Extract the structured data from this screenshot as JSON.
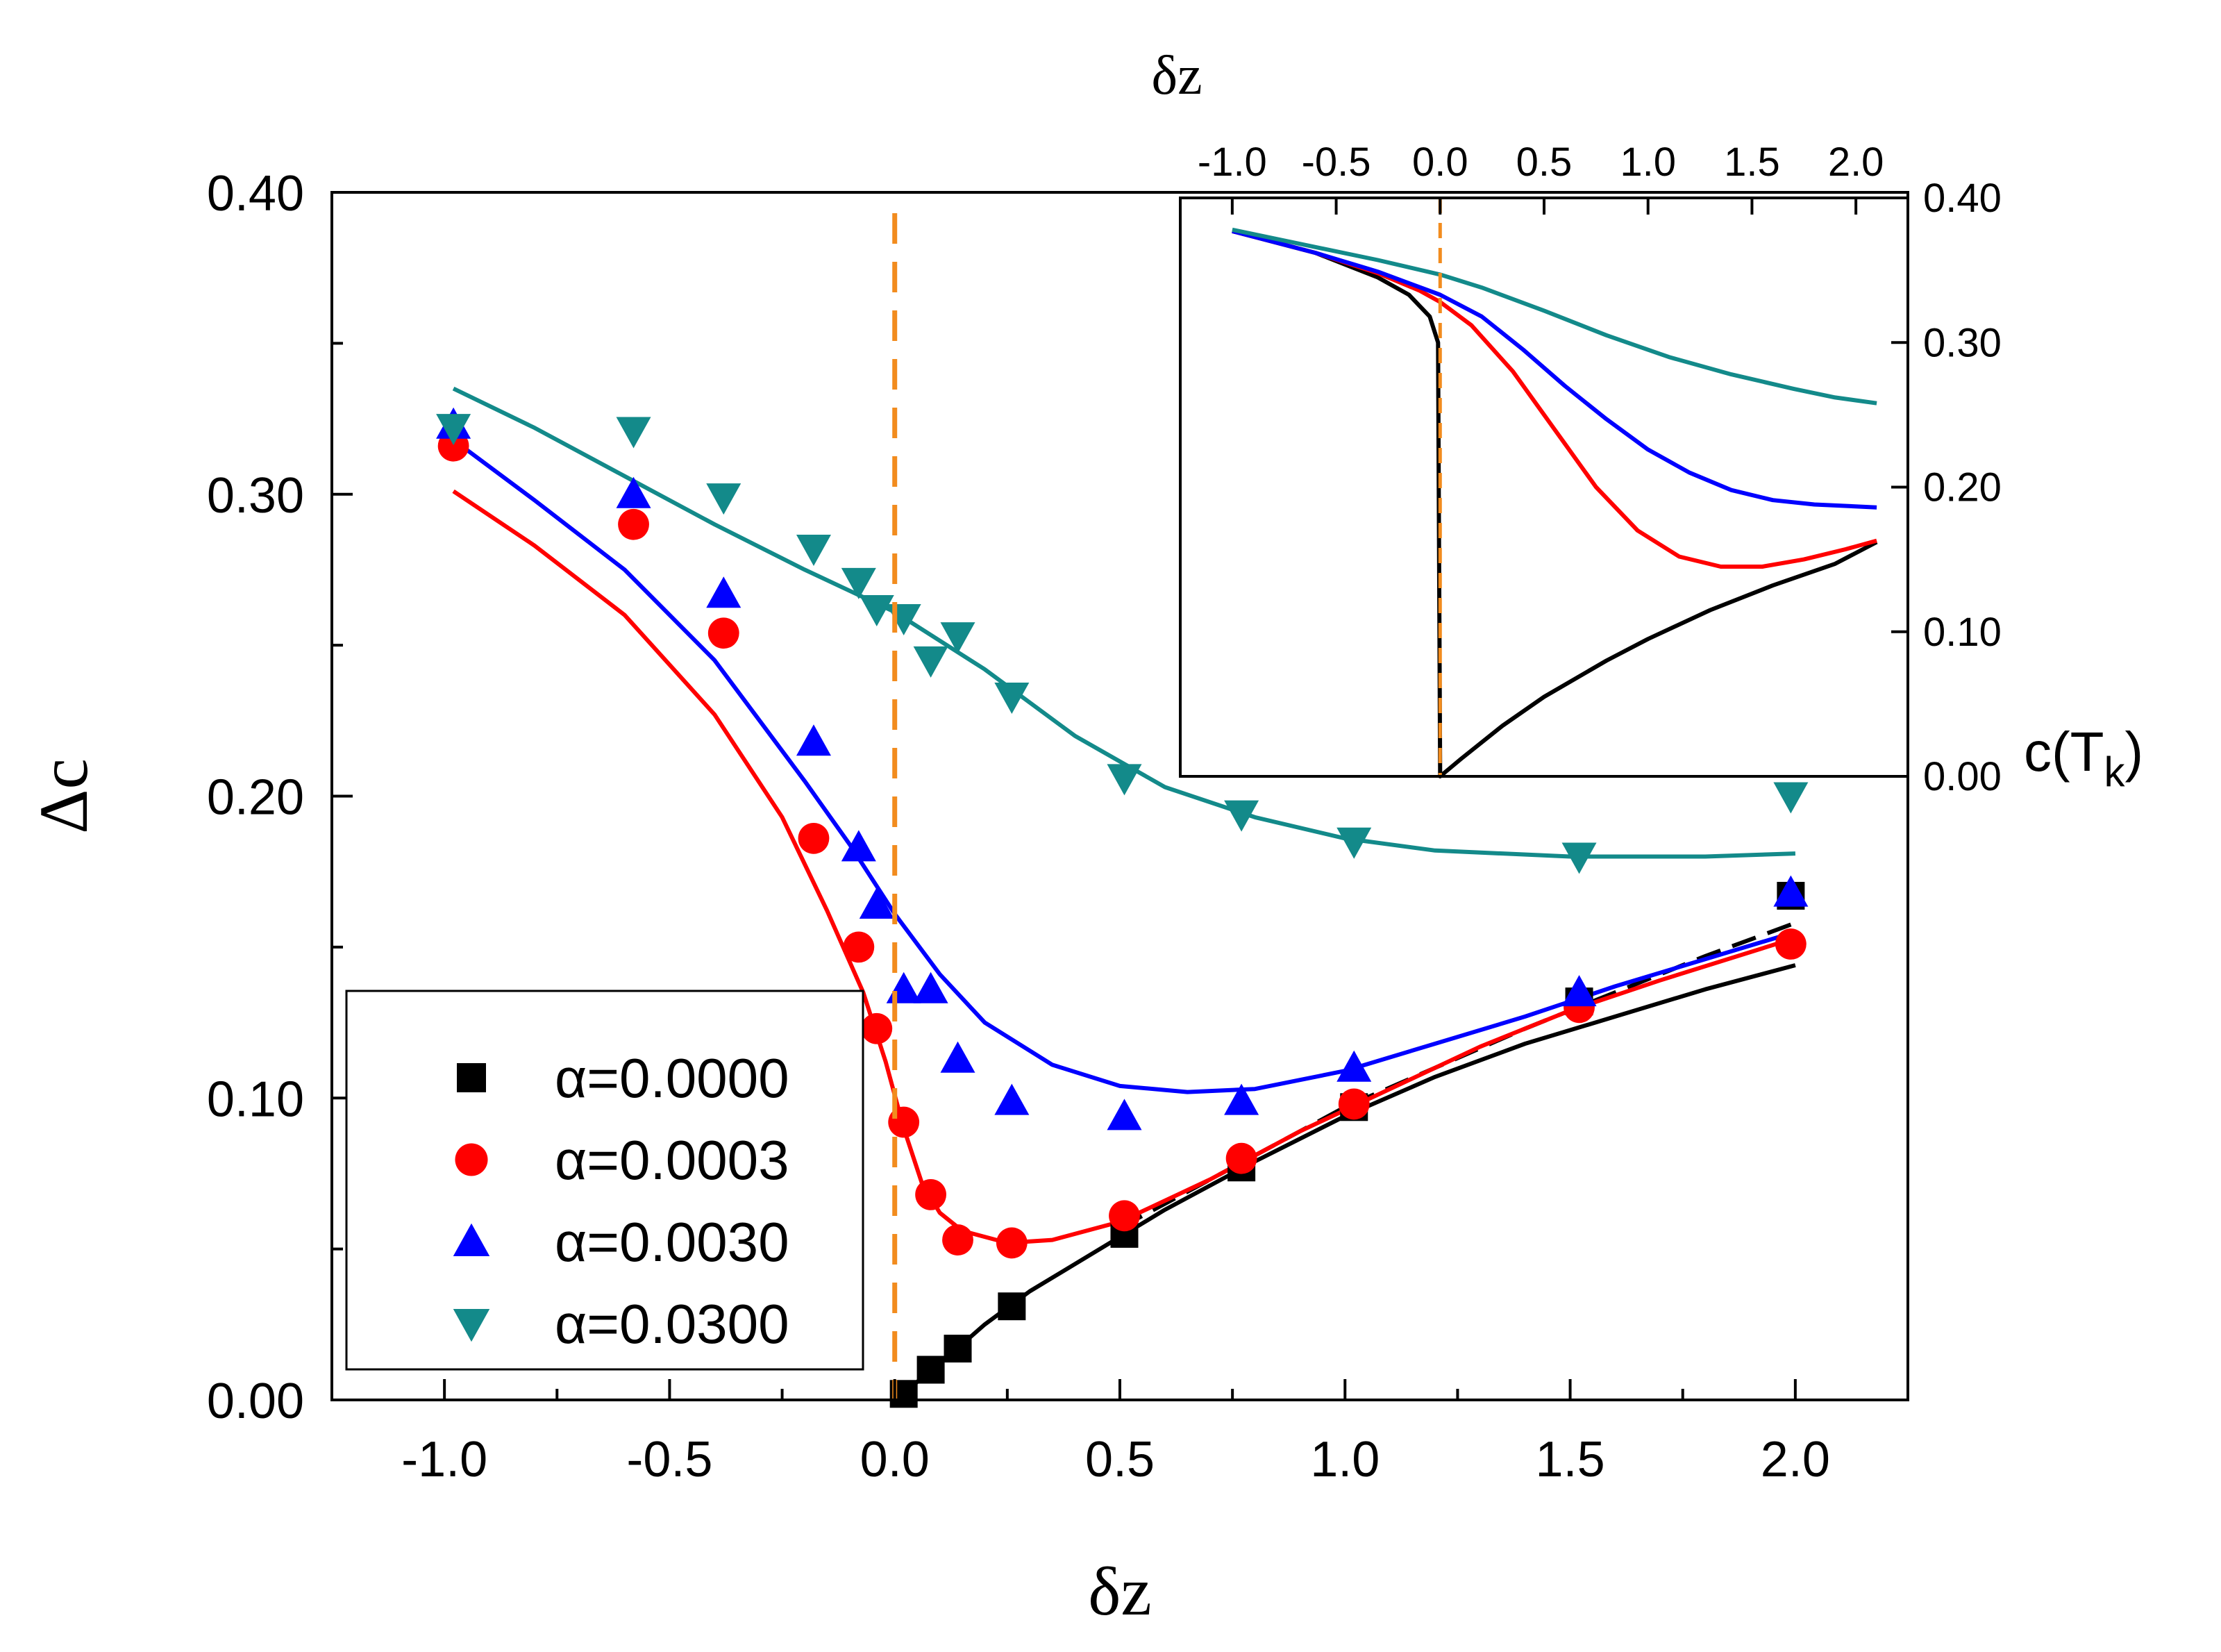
{
  "chart_data": [
    {
      "id": "main",
      "type": "scatter",
      "xlabel": "δz",
      "ylabel": "Δc",
      "xlim": [
        -1.25,
        2.25
      ],
      "ylim": [
        0.0,
        0.4
      ],
      "xticks": [
        "-1.0",
        "-0.5",
        "0.0",
        "0.5",
        "1.0",
        "1.5",
        "2.0"
      ],
      "xtick_values": [
        -1.0,
        -0.5,
        0.0,
        0.5,
        1.0,
        1.5,
        2.0
      ],
      "yticks": [
        "0.00",
        "0.10",
        "0.20",
        "0.30",
        "0.40"
      ],
      "ytick_values": [
        0.0,
        0.1,
        0.2,
        0.3,
        0.4
      ],
      "vline": {
        "x": 0.0,
        "color": "#F28C1E",
        "style": "dashed"
      },
      "legend": {
        "position": "bottom-left",
        "entries": [
          "α=0.0000",
          "α=0.0003",
          "α=0.0030",
          "α=0.0300"
        ]
      },
      "series": [
        {
          "name": "α=0.0000",
          "color": "#000000",
          "marker": "square",
          "points": [
            [
              0.02,
              0.002
            ],
            [
              0.08,
              0.01
            ],
            [
              0.14,
              0.017
            ],
            [
              0.26,
              0.031
            ],
            [
              0.51,
              0.055
            ],
            [
              0.77,
              0.077
            ],
            [
              1.02,
              0.097
            ],
            [
              1.52,
              0.132
            ],
            [
              1.99,
              0.167
            ]
          ],
          "curve": [
            [
              0.0,
              0.0
            ],
            [
              0.1,
              0.012
            ],
            [
              0.2,
              0.025
            ],
            [
              0.3,
              0.036
            ],
            [
              0.4,
              0.045
            ],
            [
              0.6,
              0.063
            ],
            [
              0.8,
              0.079
            ],
            [
              1.0,
              0.094
            ],
            [
              1.2,
              0.107
            ],
            [
              1.4,
              0.118
            ],
            [
              1.6,
              0.127
            ],
            [
              1.8,
              0.136
            ],
            [
              2.0,
              0.144
            ]
          ],
          "dashed_curve": [
            [
              0.5,
              0.057
            ],
            [
              0.8,
              0.081
            ],
            [
              1.0,
              0.097
            ],
            [
              1.2,
              0.11
            ],
            [
              1.4,
              0.123
            ],
            [
              1.6,
              0.135
            ],
            [
              1.8,
              0.147
            ],
            [
              2.0,
              0.158
            ]
          ]
        },
        {
          "name": "α=0.0003",
          "color": "#FF0000",
          "marker": "circle",
          "points": [
            [
              -0.98,
              0.316
            ],
            [
              -0.58,
              0.29
            ],
            [
              -0.38,
              0.254
            ],
            [
              -0.18,
              0.186
            ],
            [
              -0.08,
              0.15
            ],
            [
              -0.04,
              0.123
            ],
            [
              0.02,
              0.092
            ],
            [
              0.08,
              0.068
            ],
            [
              0.14,
              0.053
            ],
            [
              0.26,
              0.052
            ],
            [
              0.51,
              0.061
            ],
            [
              0.77,
              0.08
            ],
            [
              1.02,
              0.098
            ],
            [
              1.52,
              0.13
            ],
            [
              1.99,
              0.151
            ]
          ],
          "curve": [
            [
              -0.98,
              0.301
            ],
            [
              -0.8,
              0.283
            ],
            [
              -0.6,
              0.26
            ],
            [
              -0.4,
              0.227
            ],
            [
              -0.25,
              0.193
            ],
            [
              -0.15,
              0.162
            ],
            [
              -0.07,
              0.135
            ],
            [
              -0.02,
              0.112
            ],
            [
              0.02,
              0.09
            ],
            [
              0.06,
              0.072
            ],
            [
              0.1,
              0.062
            ],
            [
              0.15,
              0.056
            ],
            [
              0.25,
              0.052
            ],
            [
              0.35,
              0.053
            ],
            [
              0.5,
              0.059
            ],
            [
              0.7,
              0.073
            ],
            [
              0.9,
              0.089
            ],
            [
              1.1,
              0.103
            ],
            [
              1.3,
              0.117
            ],
            [
              1.5,
              0.129
            ],
            [
              1.7,
              0.139
            ],
            [
              2.0,
              0.153
            ]
          ]
        },
        {
          "name": "α=0.0030",
          "color": "#0000FF",
          "marker": "triangle-up",
          "points": [
            [
              -0.98,
              0.323
            ],
            [
              -0.58,
              0.3
            ],
            [
              -0.38,
              0.267
            ],
            [
              -0.18,
              0.218
            ],
            [
              -0.08,
              0.183
            ],
            [
              -0.04,
              0.164
            ],
            [
              0.02,
              0.136
            ],
            [
              0.08,
              0.136
            ],
            [
              0.14,
              0.113
            ],
            [
              0.26,
              0.099
            ],
            [
              0.51,
              0.094
            ],
            [
              0.77,
              0.099
            ],
            [
              1.02,
              0.11
            ],
            [
              1.52,
              0.135
            ],
            [
              1.99,
              0.168
            ]
          ],
          "curve": [
            [
              -0.98,
              0.318
            ],
            [
              -0.8,
              0.298
            ],
            [
              -0.6,
              0.275
            ],
            [
              -0.4,
              0.245
            ],
            [
              -0.2,
              0.205
            ],
            [
              -0.1,
              0.184
            ],
            [
              0.0,
              0.161
            ],
            [
              0.1,
              0.141
            ],
            [
              0.2,
              0.125
            ],
            [
              0.35,
              0.111
            ],
            [
              0.5,
              0.104
            ],
            [
              0.65,
              0.102
            ],
            [
              0.8,
              0.103
            ],
            [
              1.0,
              0.109
            ],
            [
              1.2,
              0.118
            ],
            [
              1.4,
              0.127
            ],
            [
              1.6,
              0.137
            ],
            [
              1.8,
              0.146
            ],
            [
              2.0,
              0.155
            ]
          ]
        },
        {
          "name": "α=0.0300",
          "color": "#138A8A",
          "marker": "triangle-down",
          "points": [
            [
              -0.98,
              0.322
            ],
            [
              -0.58,
              0.321
            ],
            [
              -0.38,
              0.299
            ],
            [
              -0.18,
              0.282
            ],
            [
              -0.08,
              0.271
            ],
            [
              -0.04,
              0.262
            ],
            [
              0.02,
              0.259
            ],
            [
              0.08,
              0.245
            ],
            [
              0.14,
              0.253
            ],
            [
              0.26,
              0.233
            ],
            [
              0.51,
              0.206
            ],
            [
              0.77,
              0.194
            ],
            [
              1.02,
              0.185
            ],
            [
              1.52,
              0.18
            ],
            [
              1.99,
              0.2
            ]
          ],
          "curve": [
            [
              -0.98,
              0.335
            ],
            [
              -0.8,
              0.322
            ],
            [
              -0.6,
              0.306
            ],
            [
              -0.4,
              0.29
            ],
            [
              -0.2,
              0.275
            ],
            [
              0.0,
              0.261
            ],
            [
              0.2,
              0.242
            ],
            [
              0.4,
              0.22
            ],
            [
              0.6,
              0.203
            ],
            [
              0.8,
              0.193
            ],
            [
              1.0,
              0.186
            ],
            [
              1.2,
              0.182
            ],
            [
              1.5,
              0.18
            ],
            [
              1.8,
              0.18
            ],
            [
              2.0,
              0.181
            ]
          ]
        }
      ]
    },
    {
      "id": "inset",
      "type": "line",
      "xlabel": "δz",
      "ylabel": "c(T_k)",
      "ylabel_main": "c(T",
      "ylabel_sub": "k",
      "ylabel_close": ")",
      "xlim": [
        -1.25,
        2.25
      ],
      "ylim": [
        0.0,
        0.4
      ],
      "xticks": [
        "-1.0",
        "-0.5",
        "0.0",
        "0.5",
        "1.0",
        "1.5",
        "2.0"
      ],
      "xtick_values": [
        -1.0,
        -0.5,
        0.0,
        0.5,
        1.0,
        1.5,
        2.0
      ],
      "yticks": [
        "0.00",
        "0.10",
        "0.20",
        "0.30",
        "0.40"
      ],
      "ytick_values": [
        0.0,
        0.1,
        0.2,
        0.3,
        0.4
      ],
      "vline": {
        "x": 0.0,
        "color": "#F28C1E",
        "style": "dashed"
      },
      "series": [
        {
          "name": "α=0.0000",
          "color": "#000000",
          "curve": [
            [
              -1.0,
              0.377
            ],
            [
              -0.6,
              0.362
            ],
            [
              -0.3,
              0.345
            ],
            [
              -0.15,
              0.333
            ],
            [
              -0.05,
              0.318
            ],
            [
              -0.01,
              0.3
            ],
            [
              0.0,
              0.0
            ],
            [
              0.1,
              0.012
            ],
            [
              0.3,
              0.035
            ],
            [
              0.5,
              0.055
            ],
            [
              0.8,
              0.08
            ],
            [
              1.0,
              0.095
            ],
            [
              1.3,
              0.115
            ],
            [
              1.6,
              0.132
            ],
            [
              1.9,
              0.147
            ],
            [
              2.1,
              0.162
            ]
          ]
        },
        {
          "name": "α=0.0003",
          "color": "#FF0000",
          "curve": [
            [
              -1.0,
              0.377
            ],
            [
              -0.6,
              0.362
            ],
            [
              -0.3,
              0.348
            ],
            [
              -0.1,
              0.336
            ],
            [
              0.0,
              0.328
            ],
            [
              0.15,
              0.312
            ],
            [
              0.35,
              0.28
            ],
            [
              0.55,
              0.24
            ],
            [
              0.75,
              0.2
            ],
            [
              0.95,
              0.17
            ],
            [
              1.15,
              0.152
            ],
            [
              1.35,
              0.145
            ],
            [
              1.55,
              0.145
            ],
            [
              1.75,
              0.15
            ],
            [
              1.95,
              0.157
            ],
            [
              2.1,
              0.163
            ]
          ]
        },
        {
          "name": "α=0.0030",
          "color": "#0000FF",
          "curve": [
            [
              -1.0,
              0.377
            ],
            [
              -0.6,
              0.362
            ],
            [
              -0.3,
              0.349
            ],
            [
              0.0,
              0.333
            ],
            [
              0.2,
              0.318
            ],
            [
              0.4,
              0.295
            ],
            [
              0.6,
              0.27
            ],
            [
              0.8,
              0.247
            ],
            [
              1.0,
              0.226
            ],
            [
              1.2,
              0.21
            ],
            [
              1.4,
              0.198
            ],
            [
              1.6,
              0.191
            ],
            [
              1.8,
              0.188
            ],
            [
              2.1,
              0.186
            ]
          ]
        },
        {
          "name": "α=0.0300",
          "color": "#138A8A",
          "curve": [
            [
              -1.0,
              0.378
            ],
            [
              -0.6,
              0.366
            ],
            [
              -0.3,
              0.357
            ],
            [
              0.0,
              0.347
            ],
            [
              0.2,
              0.338
            ],
            [
              0.5,
              0.322
            ],
            [
              0.8,
              0.305
            ],
            [
              1.1,
              0.29
            ],
            [
              1.4,
              0.278
            ],
            [
              1.7,
              0.268
            ],
            [
              1.9,
              0.262
            ],
            [
              2.1,
              0.258
            ]
          ]
        }
      ]
    }
  ]
}
